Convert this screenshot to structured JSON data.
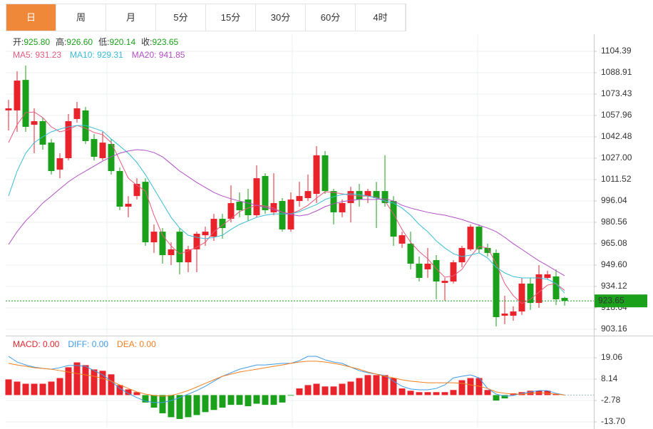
{
  "tabs": [
    "日",
    "周",
    "月",
    "5分",
    "15分",
    "30分",
    "60分",
    "4时"
  ],
  "chart_data": [
    {
      "type": "candlestick",
      "ohlc": [
        {
          "label": "开:",
          "value": "925.80"
        },
        {
          "label": "高:",
          "value": "926.60"
        },
        {
          "label": "低:",
          "value": "920.14"
        },
        {
          "label": "收:",
          "value": "923.65"
        }
      ],
      "up_color": "#e8232c",
      "down_color": "#1aa01a",
      "open": [
        1061.6,
        1061.6,
        1083.7,
        1051.2,
        1053.8,
        1038.3,
        1018.7,
        1027.0,
        1055.4,
        1061.6,
        1040.9,
        1027.0,
        1037.3,
        1017.7,
        991.9,
        999.6,
        1009.9,
        966.1,
        973.8,
        956.8,
        973.8,
        951.6,
        961.0,
        971.2,
        970.2,
        983.1,
        983.1,
        995.5,
        997.1,
        985.7,
        1014.1,
        987.8,
        996.0,
        975.4,
        996.0,
        998.1,
        1001.2,
        1029.1,
        1003.2,
        987.8,
        994.5,
        1003.2,
        999.6,
        1003.2,
        1003.2,
        996.0,
        965.1,
        965.1,
        950.6,
        946.5,
        953.2,
        936.7,
        937.7,
        951.6,
        961.0,
        977.4,
        962.0,
        958.4,
        912.9,
        912.9,
        916.0,
        936.2,
        922.2,
        940.3,
        941.4,
        925.8
      ],
      "high": [
        1069.3,
        1089.9,
        1094.1,
        1063.1,
        1056.4,
        1040.9,
        1030.6,
        1059.0,
        1067.8,
        1064.1,
        1044.5,
        1046.1,
        1040.9,
        1020.3,
        999.6,
        1012.5,
        1012.5,
        979.0,
        976.4,
        966.1,
        976.4,
        963.5,
        973.8,
        977.4,
        986.7,
        986.7,
        1007.4,
        1002.2,
        1004.8,
        1021.8,
        1016.1,
        1016.1,
        998.1,
        1002.2,
        1009.9,
        1015.1,
        1035.8,
        1032.2,
        1004.8,
        997.1,
        1006.3,
        1008.4,
        1004.8,
        1009.9,
        1029.1,
        999.6,
        973.8,
        973.8,
        955.8,
        962.0,
        956.8,
        940.3,
        953.2,
        963.5,
        979.0,
        979.0,
        965.1,
        961.0,
        927.4,
        919.7,
        940.3,
        940.3,
        949.6,
        945.5,
        946.5,
        926.6
      ],
      "low": [
        1047.1,
        1046.1,
        1046.1,
        1030.6,
        1033.2,
        1015.1,
        1012.5,
        1025.4,
        1052.8,
        1037.3,
        1025.4,
        1025.4,
        1015.1,
        989.3,
        984.2,
        997.1,
        963.5,
        958.4,
        950.6,
        949.6,
        942.9,
        944.4,
        944.4,
        963.5,
        967.1,
        968.7,
        980.5,
        984.2,
        981.6,
        984.2,
        986.7,
        985.7,
        973.8,
        973.8,
        991.9,
        996.0,
        994.5,
        1001.2,
        979.0,
        984.2,
        980.5,
        991.9,
        994.5,
        976.4,
        991.9,
        963.5,
        962.0,
        946.5,
        937.7,
        940.3,
        924.8,
        923.8,
        936.2,
        948.0,
        959.9,
        958.4,
        955.8,
        905.2,
        906.8,
        909.3,
        913.5,
        917.1,
        918.6,
        939.3,
        920.7,
        920.14
      ],
      "close": [
        1063.1,
        1083.2,
        1049.7,
        1053.8,
        1036.8,
        1017.7,
        1027.0,
        1053.8,
        1063.1,
        1039.4,
        1028.0,
        1038.3,
        1017.7,
        991.9,
        994.0,
        1008.4,
        966.1,
        973.8,
        956.8,
        961.0,
        951.6,
        961.0,
        972.3,
        973.8,
        983.1,
        976.4,
        994.5,
        989.3,
        985.7,
        1012.5,
        989.3,
        994.5,
        975.4,
        997.1,
        999.6,
        1003.2,
        1029.1,
        1003.2,
        987.8,
        994.5,
        1003.2,
        997.1,
        1003.2,
        998.1,
        994.5,
        970.2,
        971.2,
        950.6,
        940.3,
        950.6,
        937.7,
        938.2,
        951.6,
        962.0,
        977.4,
        961.0,
        958.4,
        911.9,
        914.5,
        916.0,
        936.2,
        922.2,
        942.9,
        942.9,
        924.8,
        923.65
      ],
      "series": [
        {
          "legend": "MA5: 931.23",
          "color": "#e65a7e",
          "values": [
            1038.3,
            1051.2,
            1060.0,
            1060.5,
            1056.4,
            1049.7,
            1046.1,
            1047.6,
            1050.7,
            1048.7,
            1045.6,
            1044.0,
            1038.3,
            1025.4,
            1012.5,
            1007.4,
            1003.2,
            985.7,
            971.2,
            963.5,
            957.8,
            959.9,
            962.5,
            966.1,
            973.8,
            978.5,
            983.1,
            988.3,
            990.9,
            992.9,
            992.4,
            990.9,
            987.8,
            986.7,
            989.3,
            992.9,
            998.1,
            1002.7,
            1002.2,
            1001.2,
            1000.2,
            999.6,
            999.6,
            998.6,
            996.0,
            986.7,
            975.4,
            966.1,
            959.4,
            954.2,
            947.0,
            940.8,
            941.8,
            946.5,
            955.8,
            963.1,
            962.0,
            950.6,
            936.2,
            927.4,
            921.7,
            924.8,
            930.0,
            935.1,
            936.2,
            931.23
          ]
        },
        {
          "legend": "MA10: 929.31",
          "color": "#38bdd6",
          "values": [
            999.6,
            1017.7,
            1030.6,
            1038.3,
            1042.5,
            1046.1,
            1048.1,
            1049.7,
            1050.7,
            1050.7,
            1048.7,
            1046.6,
            1040.9,
            1035.8,
            1030.6,
            1023.9,
            1015.1,
            1004.8,
            994.5,
            984.2,
            976.4,
            971.2,
            969.7,
            968.7,
            969.7,
            971.2,
            975.4,
            979.0,
            981.6,
            984.2,
            985.7,
            986.7,
            986.7,
            986.7,
            988.3,
            990.9,
            993.4,
            997.1,
            999.1,
            1000.7,
            1001.2,
            1000.7,
            999.6,
            998.1,
            996.0,
            994.5,
            990.9,
            985.7,
            979.0,
            973.8,
            967.1,
            962.0,
            957.8,
            955.8,
            956.8,
            958.4,
            954.7,
            948.0,
            943.9,
            941.3,
            940.3,
            940.3,
            940.3,
            939.3,
            936.2,
            929.31
          ]
        },
        {
          "legend": "MA20: 941.85",
          "color": "#b24fc6",
          "values": [
            964.5,
            973.8,
            981.6,
            987.8,
            994.5,
            999.6,
            1004.8,
            1009.9,
            1014.1,
            1017.7,
            1021.3,
            1024.9,
            1028.0,
            1030.6,
            1032.2,
            1033.2,
            1032.7,
            1031.1,
            1028.0,
            1022.9,
            1017.7,
            1013.6,
            1009.4,
            1005.8,
            1002.2,
            999.6,
            997.6,
            996.0,
            994.5,
            992.9,
            991.4,
            989.8,
            987.8,
            986.2,
            985.2,
            986.2,
            988.8,
            991.9,
            994.0,
            995.5,
            996.5,
            997.1,
            997.1,
            997.1,
            997.6,
            996.0,
            992.9,
            990.9,
            989.3,
            987.8,
            986.7,
            985.7,
            984.2,
            982.6,
            980.5,
            978.5,
            976.4,
            973.8,
            969.7,
            965.1,
            961.0,
            956.8,
            952.7,
            949.2,
            945.5,
            941.85
          ]
        }
      ],
      "last_price": {
        "value": 923.65,
        "label": "923.65"
      },
      "last_color": "#1aa01a",
      "ylim": [
        899.0,
        1116.8
      ],
      "yticks": [
        1104.39,
        1088.91,
        1073.43,
        1057.96,
        1042.48,
        {
          "value": 1027.0,
          "label": "1027.00"
        },
        1011.52,
        996.04,
        980.56,
        965.08,
        {
          "value": 949.6,
          "label": "949.60"
        },
        934.12,
        918.64,
        903.16
      ],
      "grid": true
    },
    {
      "type": "macd",
      "histogram": {
        "legend": "MACD: 0.00",
        "color": "#e8232c",
        "negative_color": "#1aa01a",
        "values": [
          8.0,
          6.9,
          5.8,
          5.8,
          5.8,
          6.9,
          8.7,
          14.2,
          16.7,
          15.3,
          13.1,
          12.4,
          10.6,
          5.1,
          2.9,
          1.5,
          -3.8,
          -6.4,
          -9.3,
          -11.3,
          -12.2,
          -11.3,
          -10.2,
          -8.7,
          -7.6,
          -6.4,
          -5.0,
          -5.0,
          -5.7,
          -4.4,
          -5.0,
          -5.0,
          -3.8,
          -0.3,
          3.4,
          5.1,
          5.8,
          4.4,
          4.4,
          5.8,
          6.9,
          8.7,
          10.2,
          10.2,
          10.2,
          8.7,
          3.4,
          2.2,
          1.5,
          1.5,
          1.5,
          1.5,
          2.6,
          7.6,
          8.7,
          8.7,
          2.6,
          -2.8,
          -1.7,
          0.9,
          1.5,
          2.2,
          2.2,
          2.2,
          0.7,
          0
        ]
      },
      "series": [
        {
          "legend": "DIFF: 0.00",
          "color": "#3d9be9",
          "values": [
            19.8,
            16.9,
            15.4,
            14.3,
            13.6,
            13.2,
            14.0,
            15.1,
            15.1,
            14.7,
            12.5,
            10.3,
            7.1,
            3.4,
            0.9,
            -1.3,
            -3.1,
            -3.8,
            -3.8,
            -2.8,
            -1.3,
            0.5,
            2.3,
            4.5,
            7.1,
            9.6,
            11.4,
            13.2,
            14.3,
            15.4,
            15.4,
            15.8,
            16.2,
            16.2,
            17.6,
            19.8,
            19.8,
            18.0,
            16.9,
            16.2,
            14.3,
            12.5,
            11.4,
            10.7,
            10.0,
            7.1,
            4.5,
            3.1,
            2.7,
            2.7,
            3.4,
            5.2,
            8.8,
            9.6,
            10.3,
            8.8,
            3.4,
            0.5,
            -0.6,
            -0.2,
            0.9,
            1.6,
            2.3,
            2.3,
            0.9,
            0
          ]
        },
        {
          "legend": "DEA: 0.00",
          "color": "#f08020",
          "values": [
            16.2,
            15.4,
            14.7,
            14.0,
            13.6,
            13.2,
            12.5,
            11.8,
            11.0,
            10.3,
            9.6,
            8.5,
            7.1,
            5.2,
            3.4,
            1.6,
            0.5,
            -0.2,
            -0.6,
            -0.2,
            0.9,
            2.3,
            4.1,
            6.0,
            7.8,
            9.6,
            10.7,
            11.8,
            12.5,
            13.2,
            14.0,
            14.7,
            15.4,
            16.2,
            16.9,
            17.3,
            17.3,
            16.9,
            16.2,
            15.4,
            14.3,
            13.2,
            11.8,
            10.7,
            9.6,
            8.8,
            7.8,
            7.1,
            6.7,
            6.3,
            6.3,
            6.3,
            6.3,
            6.0,
            5.2,
            4.5,
            3.4,
            1.6,
            0.9,
            0.5,
            0.5,
            0.9,
            1.2,
            0.9,
            0.5,
            0
          ]
        }
      ],
      "ylim": [
        -16.6,
        30.0
      ],
      "yticks": [
        19.06,
        8.14,
        -2.78,
        {
          "value": -13.7,
          "label": "-13.70"
        }
      ],
      "grid": true
    }
  ]
}
